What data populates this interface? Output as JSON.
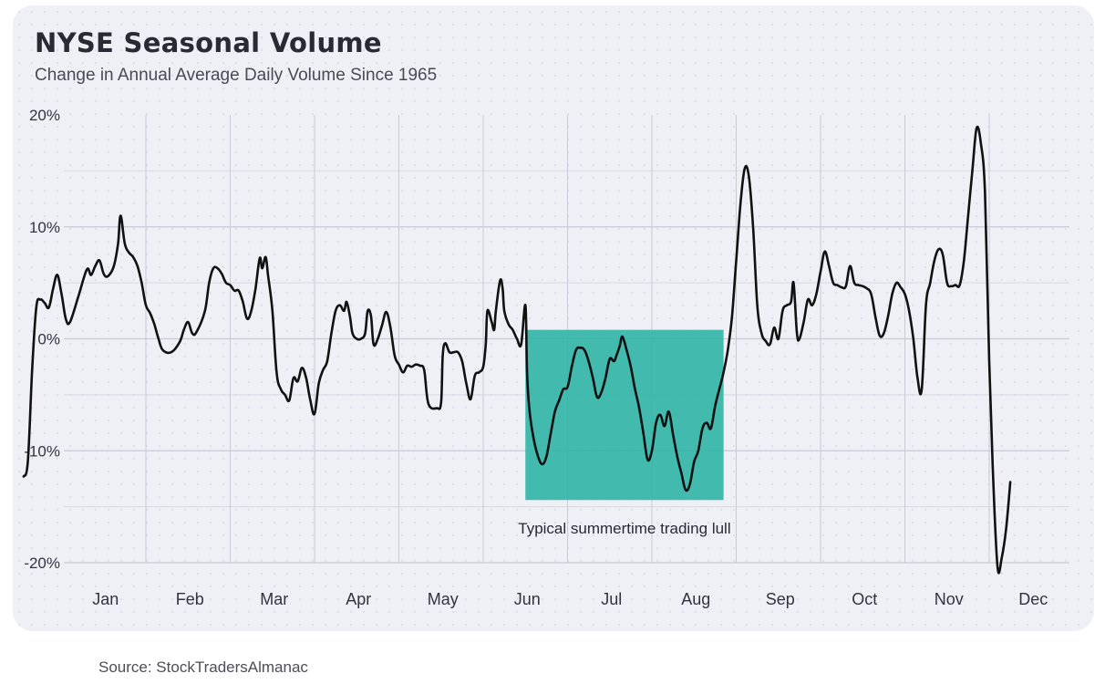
{
  "card": {
    "title": "NYSE Seasonal Volume",
    "subtitle": "Change in Annual Average Daily Volume Since 1965"
  },
  "source": "Source: StockTradersAlmanac",
  "colors": {
    "line": "#111111",
    "highlight": "#2fb5a6",
    "grid_major": "#cacad6",
    "grid_minor": "#d8d8e4",
    "background": "#efeff6"
  },
  "chart_data": {
    "type": "line",
    "title": "NYSE Seasonal Volume",
    "subtitle": "Change in Annual Average Daily Volume Since 1965",
    "xlabel": "",
    "ylabel": "",
    "x_unit": "month of year (1.0 = start of Jan, 13.0 = end of Dec)",
    "ylim": [
      -20,
      20
    ],
    "y_ticks": [
      20,
      10,
      0,
      -10,
      -20
    ],
    "y_tick_labels": [
      "20%",
      "10%",
      "0%",
      "-10%",
      "-20%"
    ],
    "month_labels": [
      "Jan",
      "Feb",
      "Mar",
      "Apr",
      "May",
      "Jun",
      "Jul",
      "Aug",
      "Sep",
      "Oct",
      "Nov",
      "Dec"
    ],
    "grid": true,
    "legend": "none",
    "highlight": {
      "label": "Typical summertime trading lull",
      "x_start": 6.5,
      "x_end": 8.85,
      "y_top": 0.8,
      "y_bottom": -14.4
    },
    "points": [
      [
        0.55,
        -12.3
      ],
      [
        0.6,
        -11
      ],
      [
        0.65,
        -3
      ],
      [
        0.7,
        2.8
      ],
      [
        0.75,
        3.5
      ],
      [
        0.8,
        3.2
      ],
      [
        0.85,
        2.8
      ],
      [
        0.9,
        4.5
      ],
      [
        0.95,
        5.7
      ],
      [
        1.0,
        4
      ],
      [
        1.05,
        1.8
      ],
      [
        1.1,
        1.5
      ],
      [
        1.2,
        3.8
      ],
      [
        1.3,
        6.2
      ],
      [
        1.35,
        5.7
      ],
      [
        1.4,
        6.5
      ],
      [
        1.45,
        7
      ],
      [
        1.5,
        5.8
      ],
      [
        1.55,
        5.6
      ],
      [
        1.62,
        6.5
      ],
      [
        1.67,
        8.5
      ],
      [
        1.7,
        11
      ],
      [
        1.75,
        8.5
      ],
      [
        1.8,
        7.7
      ],
      [
        1.85,
        7.3
      ],
      [
        1.9,
        6.5
      ],
      [
        1.95,
        5
      ],
      [
        2.0,
        3
      ],
      [
        2.05,
        2.3
      ],
      [
        2.1,
        1.3
      ],
      [
        2.15,
        0
      ],
      [
        2.2,
        -1
      ],
      [
        2.3,
        -1.2
      ],
      [
        2.4,
        -0.3
      ],
      [
        2.45,
        0.8
      ],
      [
        2.5,
        1.5
      ],
      [
        2.55,
        0.5
      ],
      [
        2.6,
        0.6
      ],
      [
        2.7,
        2.5
      ],
      [
        2.75,
        5
      ],
      [
        2.8,
        6.3
      ],
      [
        2.85,
        6.3
      ],
      [
        2.9,
        5.8
      ],
      [
        2.95,
        5
      ],
      [
        3.0,
        4.8
      ],
      [
        3.05,
        4.3
      ],
      [
        3.1,
        4.3
      ],
      [
        3.15,
        3.3
      ],
      [
        3.2,
        1.8
      ],
      [
        3.25,
        2.5
      ],
      [
        3.3,
        4.5
      ],
      [
        3.35,
        7.2
      ],
      [
        3.38,
        6.3
      ],
      [
        3.42,
        7.3
      ],
      [
        3.45,
        5.6
      ],
      [
        3.5,
        2.5
      ],
      [
        3.55,
        -3
      ],
      [
        3.6,
        -4.5
      ],
      [
        3.65,
        -5
      ],
      [
        3.7,
        -5.5
      ],
      [
        3.75,
        -3.5
      ],
      [
        3.8,
        -3.8
      ],
      [
        3.85,
        -2.6
      ],
      [
        3.9,
        -3.5
      ],
      [
        3.95,
        -5.5
      ],
      [
        4.0,
        -6.7
      ],
      [
        4.05,
        -4
      ],
      [
        4.1,
        -2.8
      ],
      [
        4.15,
        -2
      ],
      [
        4.2,
        0.5
      ],
      [
        4.25,
        2.5
      ],
      [
        4.3,
        3
      ],
      [
        4.35,
        2.5
      ],
      [
        4.38,
        3.3
      ],
      [
        4.42,
        2
      ],
      [
        4.45,
        0.5
      ],
      [
        4.5,
        0
      ],
      [
        4.55,
        0
      ],
      [
        4.6,
        0.5
      ],
      [
        4.63,
        2.5
      ],
      [
        4.67,
        2
      ],
      [
        4.7,
        -0.5
      ],
      [
        4.75,
        0
      ],
      [
        4.8,
        1.2
      ],
      [
        4.85,
        2.4
      ],
      [
        4.9,
        1
      ],
      [
        4.95,
        -1.5
      ],
      [
        5.0,
        -2.3
      ],
      [
        5.05,
        -3
      ],
      [
        5.1,
        -2.4
      ],
      [
        5.15,
        -2.5
      ],
      [
        5.2,
        -2.3
      ],
      [
        5.25,
        -2.4
      ],
      [
        5.3,
        -2.8
      ],
      [
        5.35,
        -5.8
      ],
      [
        5.45,
        -6.2
      ],
      [
        5.5,
        -5.7
      ],
      [
        5.52,
        -1.5
      ],
      [
        5.55,
        -0.4
      ],
      [
        5.6,
        -1.2
      ],
      [
        5.65,
        -1.2
      ],
      [
        5.7,
        -1.2
      ],
      [
        5.75,
        -2
      ],
      [
        5.8,
        -4
      ],
      [
        5.85,
        -5.4
      ],
      [
        5.9,
        -3.3
      ],
      [
        5.95,
        -3
      ],
      [
        6.0,
        -2.5
      ],
      [
        6.03,
        -0.5
      ],
      [
        6.05,
        2.5
      ],
      [
        6.1,
        1.5
      ],
      [
        6.13,
        0.8
      ],
      [
        6.15,
        2.5
      ],
      [
        6.2,
        5.2
      ],
      [
        6.23,
        4.5
      ],
      [
        6.25,
        2.5
      ],
      [
        6.3,
        1.3
      ],
      [
        6.35,
        0.8
      ],
      [
        6.4,
        0
      ],
      [
        6.45,
        -0.5
      ],
      [
        6.5,
        3
      ],
      [
        6.52,
        -3
      ],
      [
        6.55,
        -6.5
      ],
      [
        6.6,
        -9
      ],
      [
        6.65,
        -10.5
      ],
      [
        6.7,
        -11.2
      ],
      [
        6.75,
        -10.5
      ],
      [
        6.8,
        -8.5
      ],
      [
        6.85,
        -6.5
      ],
      [
        6.9,
        -5.5
      ],
      [
        6.95,
        -4.5
      ],
      [
        7.0,
        -4.3
      ],
      [
        7.05,
        -2.5
      ],
      [
        7.1,
        -1
      ],
      [
        7.15,
        -0.8
      ],
      [
        7.2,
        -1
      ],
      [
        7.25,
        -2
      ],
      [
        7.3,
        -3.5
      ],
      [
        7.35,
        -5.2
      ],
      [
        7.4,
        -4.8
      ],
      [
        7.45,
        -3.5
      ],
      [
        7.5,
        -1.8
      ],
      [
        7.55,
        -2
      ],
      [
        7.58,
        -1.5
      ],
      [
        7.62,
        -0.6
      ],
      [
        7.65,
        0.2
      ],
      [
        7.7,
        -1
      ],
      [
        7.75,
        -2.5
      ],
      [
        7.8,
        -4.5
      ],
      [
        7.85,
        -6.2
      ],
      [
        7.9,
        -8.5
      ],
      [
        7.95,
        -10.8
      ],
      [
        8.0,
        -10
      ],
      [
        8.05,
        -7.5
      ],
      [
        8.1,
        -6.8
      ],
      [
        8.15,
        -7.8
      ],
      [
        8.2,
        -6.5
      ],
      [
        8.25,
        -8.5
      ],
      [
        8.3,
        -10.5
      ],
      [
        8.35,
        -12
      ],
      [
        8.4,
        -13.5
      ],
      [
        8.45,
        -13
      ],
      [
        8.5,
        -11
      ],
      [
        8.55,
        -10
      ],
      [
        8.6,
        -8
      ],
      [
        8.65,
        -7.5
      ],
      [
        8.7,
        -8
      ],
      [
        8.75,
        -6
      ],
      [
        8.8,
        -4.5
      ],
      [
        8.85,
        -3
      ],
      [
        8.9,
        -1
      ],
      [
        8.95,
        2
      ],
      [
        9.0,
        7
      ],
      [
        9.05,
        12
      ],
      [
        9.1,
        15.2
      ],
      [
        9.15,
        14.5
      ],
      [
        9.2,
        10
      ],
      [
        9.25,
        3
      ],
      [
        9.3,
        0.5
      ],
      [
        9.35,
        -0.2
      ],
      [
        9.4,
        -0.5
      ],
      [
        9.45,
        1
      ],
      [
        9.5,
        0
      ],
      [
        9.55,
        2.5
      ],
      [
        9.6,
        3
      ],
      [
        9.65,
        3.3
      ],
      [
        9.68,
        5
      ],
      [
        9.72,
        0.5
      ],
      [
        9.75,
        0
      ],
      [
        9.8,
        1.5
      ],
      [
        9.85,
        3.5
      ],
      [
        9.9,
        3
      ],
      [
        9.95,
        4
      ],
      [
        10.0,
        6
      ],
      [
        10.05,
        7.8
      ],
      [
        10.1,
        6.5
      ],
      [
        10.15,
        5
      ],
      [
        10.2,
        4.8
      ],
      [
        10.25,
        4.6
      ],
      [
        10.3,
        4.7
      ],
      [
        10.35,
        6.5
      ],
      [
        10.4,
        5
      ],
      [
        10.45,
        4.8
      ],
      [
        10.5,
        4.7
      ],
      [
        10.55,
        4.5
      ],
      [
        10.6,
        4
      ],
      [
        10.65,
        2
      ],
      [
        10.7,
        0.3
      ],
      [
        10.75,
        0.5
      ],
      [
        10.8,
        2
      ],
      [
        10.85,
        4
      ],
      [
        10.9,
        5
      ],
      [
        10.95,
        4.6
      ],
      [
        11.0,
        4
      ],
      [
        11.05,
        2.5
      ],
      [
        11.1,
        0
      ],
      [
        11.15,
        -3.5
      ],
      [
        11.2,
        -4.5
      ],
      [
        11.25,
        3
      ],
      [
        11.3,
        5
      ],
      [
        11.35,
        7
      ],
      [
        11.4,
        8
      ],
      [
        11.45,
        7.5
      ],
      [
        11.5,
        5
      ],
      [
        11.55,
        4.7
      ],
      [
        11.6,
        4.8
      ],
      [
        11.65,
        4.8
      ],
      [
        11.7,
        7
      ],
      [
        11.75,
        11
      ],
      [
        11.8,
        15
      ],
      [
        11.85,
        18.8
      ],
      [
        11.9,
        17.5
      ],
      [
        11.95,
        13
      ],
      [
        12.0,
        -2
      ],
      [
        12.05,
        -13
      ],
      [
        12.1,
        -20.5
      ],
      [
        12.15,
        -19.5
      ],
      [
        12.2,
        -17
      ],
      [
        12.25,
        -12.8
      ]
    ]
  }
}
